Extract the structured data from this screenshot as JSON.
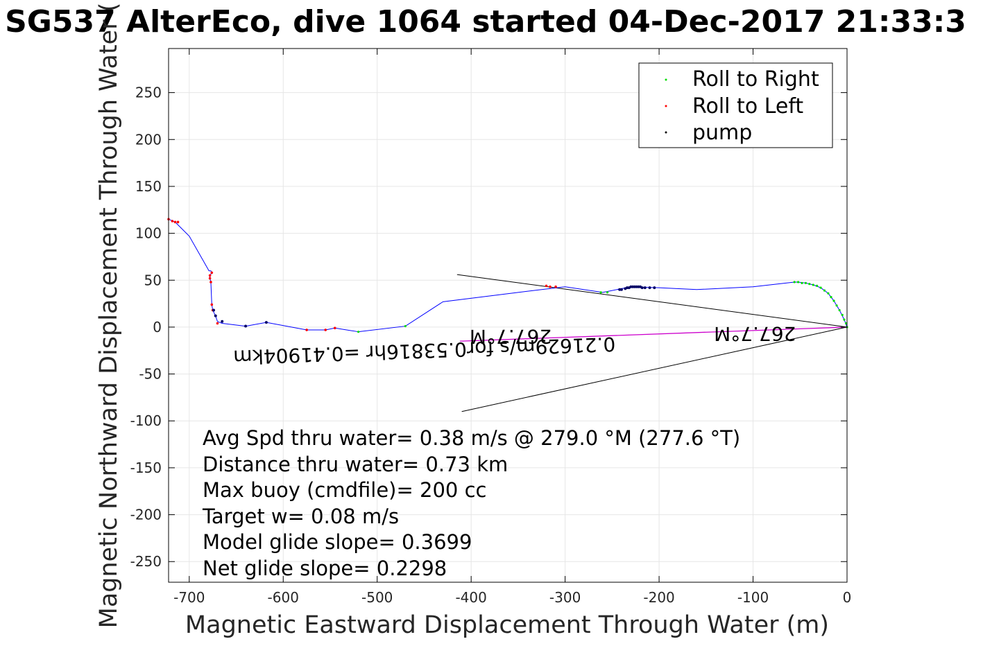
{
  "chart_data": {
    "type": "line",
    "title": "SG537 AlterEco, dive 1064 started 04-Dec-2017 21:33:3",
    "xlabel": "Magnetic Eastward Displacement Through Water (m)",
    "ylabel": "Magnetic Northward Displacement Through Water (",
    "xlim": [
      -722,
      0
    ],
    "ylim": [
      -272,
      297
    ],
    "grid": true,
    "legend_position": "top-right",
    "xticks": [
      -700,
      -600,
      -500,
      -400,
      -300,
      -200,
      -100,
      0
    ],
    "xtick_labels": [
      "-700",
      "-600",
      "-500",
      "-400",
      "-300",
      "-200",
      "-100",
      "0"
    ],
    "yticks": [
      250,
      200,
      150,
      100,
      50,
      0,
      -50,
      -100,
      -150,
      -200,
      -250
    ],
    "ytick_labels": [
      "250",
      "200",
      "150",
      "100",
      "50",
      "0",
      "-50",
      "-100",
      "-150",
      "-200",
      "-250"
    ],
    "legend": [
      {
        "label": "Roll to Right",
        "color": "#00dd00"
      },
      {
        "label": "Roll to Left",
        "color": "#ff0000"
      },
      {
        "label": "pump",
        "color": "#000000"
      }
    ],
    "track": {
      "name": "",
      "color": "#0000ff",
      "x": [
        0,
        -3,
        -8,
        -14,
        -20,
        -28,
        -36,
        -44,
        -52,
        -56,
        -100,
        -160,
        -200,
        -230,
        -260,
        -300,
        -350,
        -430,
        -470,
        -520,
        -545,
        -555,
        -575,
        -618,
        -640,
        -665,
        -670,
        -672,
        -675,
        -676,
        -677,
        -678,
        -678,
        -676,
        -677,
        -679,
        -700,
        -715,
        -722
      ],
      "y": [
        0,
        8,
        18,
        28,
        36,
        42,
        45,
        47,
        48,
        48,
        43,
        40,
        42,
        43,
        37,
        43,
        37,
        27,
        1,
        -5,
        -1,
        -3,
        -3,
        5,
        1,
        4,
        6,
        12,
        18,
        24,
        48,
        52,
        55,
        58,
        60,
        60,
        97,
        112,
        115
      ]
    },
    "current_line": {
      "color": "#cc00cc",
      "x": [
        0,
        -412
      ],
      "y": [
        0,
        -15
      ]
    },
    "guide_lines": [
      {
        "x": [
          0,
          -415
        ],
        "y": [
          0,
          56
        ]
      },
      {
        "x": [
          0,
          -410
        ],
        "y": [
          0,
          -90
        ]
      }
    ],
    "roll_right": {
      "x": [
        0,
        -1,
        -3,
        -5,
        -8,
        -11,
        -14,
        -17,
        -20,
        -24,
        -28,
        -32,
        -36,
        -40,
        -44,
        -48,
        -52,
        -56,
        -255,
        -262,
        -470,
        -520
      ],
      "y": [
        0,
        4,
        8,
        13,
        18,
        23,
        28,
        32,
        36,
        39,
        42,
        44,
        45,
        46,
        47,
        47,
        48,
        48,
        37,
        37,
        1,
        -5
      ]
    },
    "roll_left": {
      "x": [
        -316,
        -320,
        -310,
        -545,
        -555,
        -575,
        -670,
        -675,
        -676,
        -677,
        -678,
        -678,
        -676,
        -715,
        -718,
        -722,
        -712
      ],
      "y": [
        43,
        44,
        43,
        -1,
        -3,
        -3,
        4,
        18,
        24,
        48,
        52,
        55,
        58,
        112,
        113,
        115,
        112
      ]
    },
    "pump": {
      "x": [
        -205,
        -210,
        -215,
        -218,
        -220,
        -222,
        -224,
        -226,
        -228,
        -230,
        -232,
        -234,
        -236,
        -240,
        -242,
        -618,
        -640,
        -665,
        -672,
        -674
      ],
      "y": [
        42,
        42,
        42,
        42,
        43,
        43,
        43,
        43,
        43,
        43,
        42,
        42,
        41,
        40,
        40,
        5,
        1,
        6,
        12,
        18
      ]
    },
    "annotations": [
      {
        "text": "267.7°M",
        "x": -98,
        "y": 0,
        "rotate": 180
      },
      {
        "text": "267.7°M",
        "x": -358,
        "y": -3,
        "rotate": 180
      },
      {
        "text": "0.21629m/s for0.53816hr =0.41904km",
        "x": -450,
        "y": -18,
        "rotate": 178
      }
    ],
    "stats": [
      "Avg Spd thru water=  0.38 m/s @ 279.0 °M (277.6 °T)",
      "Distance thru water=  0.73 km",
      "Max buoy (cmdfile)= 200 cc",
      "Target w= 0.08 m/s",
      "Model glide slope= 0.3699",
      "Net glide slope= 0.2298"
    ]
  }
}
